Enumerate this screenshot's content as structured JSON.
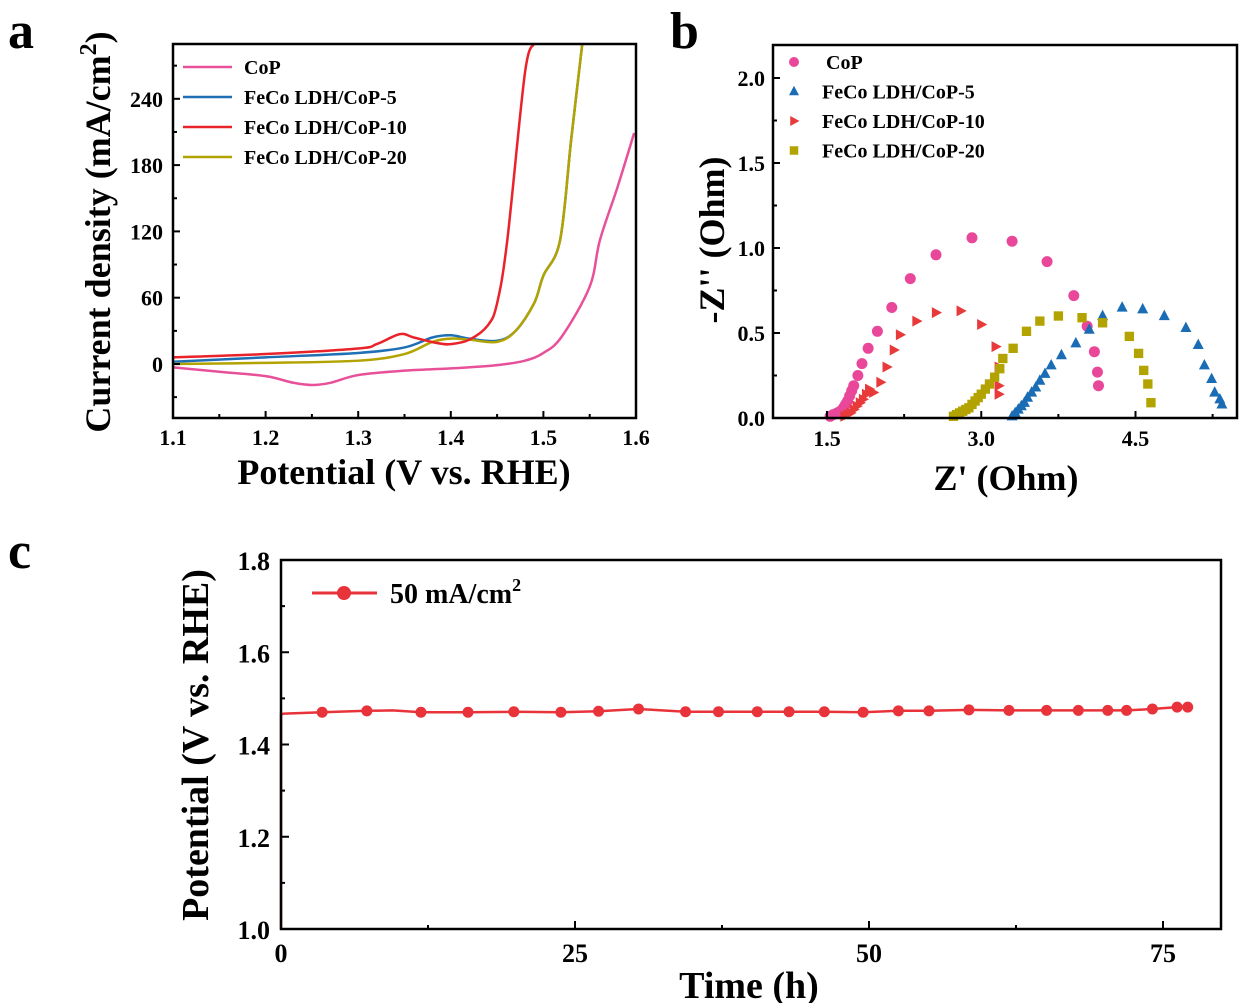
{
  "figure": {
    "panel_letters": [
      "a",
      "b",
      "c"
    ]
  },
  "chart_data": [
    {
      "panel": "a",
      "type": "line",
      "title": "",
      "xlabel": "Potential (V vs. RHE)",
      "ylabel": "Current density (mA/cm²)",
      "ylabel_parts": {
        "main": "Current density (mA/cm",
        "sup": "2",
        "end": ")"
      },
      "xlim": [
        1.1,
        1.6
      ],
      "ylim": [
        -49,
        290
      ],
      "xticks": [
        1.1,
        1.2,
        1.3,
        1.4,
        1.5,
        1.6
      ],
      "xtick_labels": [
        "1.1",
        "1.2",
        "1.3",
        "1.4",
        "1.5",
        "1.6"
      ],
      "yticks": [
        0,
        60,
        120,
        180,
        240
      ],
      "ytick_labels": [
        "0",
        "60",
        "120",
        "180",
        "240"
      ],
      "grid": false,
      "legend_position": "top-left",
      "series": [
        {
          "name": "CoP",
          "color": "#e8509a",
          "x": [
            1.1,
            1.15,
            1.2,
            1.23,
            1.25,
            1.27,
            1.3,
            1.35,
            1.4,
            1.45,
            1.48,
            1.5,
            1.52,
            1.55,
            1.561,
            1.58,
            1.598
          ],
          "y": [
            -3,
            -7,
            -11,
            -17,
            -19,
            -17,
            -10,
            -6,
            -4,
            -1,
            3,
            10,
            25,
            70,
            112,
            160,
            209
          ]
        },
        {
          "name": "FeCo LDH/CoP-5",
          "color": "#1f6fb5",
          "x": [
            1.1,
            1.2,
            1.3,
            1.35,
            1.38,
            1.4,
            1.42,
            1.45,
            1.47,
            1.49,
            1.5,
            1.518,
            1.53,
            1.542
          ],
          "y": [
            2,
            6,
            10,
            15,
            24,
            26,
            23,
            21,
            30,
            55,
            80,
            112,
            203,
            290
          ]
        },
        {
          "name": "FeCo LDH/CoP-10",
          "color": "#e8232a",
          "x": [
            1.1,
            1.2,
            1.3,
            1.32,
            1.345,
            1.36,
            1.385,
            1.4,
            1.42,
            1.44,
            1.45,
            1.461,
            1.48,
            1.49
          ],
          "y": [
            6,
            9,
            14,
            18,
            27,
            24,
            19,
            18,
            22,
            35,
            55,
            112,
            263,
            290
          ]
        },
        {
          "name": "FeCo LDH/CoP-20",
          "color": "#b3a300",
          "x": [
            1.1,
            1.2,
            1.3,
            1.35,
            1.38,
            1.4,
            1.42,
            1.45,
            1.47,
            1.49,
            1.5,
            1.518,
            1.53,
            1.542
          ],
          "y": [
            0,
            1,
            3,
            9,
            20,
            23,
            22,
            20,
            30,
            55,
            80,
            112,
            203,
            290
          ]
        }
      ]
    },
    {
      "panel": "b",
      "type": "scatter",
      "title": "",
      "xlabel": "Z' (Ohm)",
      "ylabel": "-Z'' (Ohm)",
      "xlim": [
        0.97,
        5.51
      ],
      "ylim": [
        0,
        2.19
      ],
      "xticks": [
        1.5,
        3.0,
        4.5
      ],
      "xtick_labels": [
        "1.5",
        "3.0",
        "4.5"
      ],
      "xminor": [
        2.25,
        3.75,
        5.25
      ],
      "yticks": [
        0.0,
        0.5,
        1.0,
        1.5,
        2.0
      ],
      "ytick_labels": [
        "0.0",
        "0.5",
        "1.0",
        "1.5",
        "2.0"
      ],
      "yminor": [
        0.25,
        0.75,
        1.25,
        1.75
      ],
      "grid": false,
      "legend_position": "top-left",
      "series": [
        {
          "name": "CoP",
          "color": "#e8479a",
          "marker": "circle",
          "x": [
            1.53,
            1.56,
            1.6,
            1.63,
            1.66,
            1.68,
            1.7,
            1.72,
            1.74,
            1.76,
            1.8,
            1.84,
            1.9,
            1.99,
            2.13,
            2.31,
            2.56,
            2.91,
            3.3,
            3.64,
            3.9,
            4.03,
            4.1,
            4.13,
            4.14
          ],
          "y": [
            0.01,
            0.02,
            0.03,
            0.04,
            0.06,
            0.08,
            0.1,
            0.13,
            0.16,
            0.19,
            0.25,
            0.32,
            0.41,
            0.51,
            0.65,
            0.82,
            0.96,
            1.06,
            1.04,
            0.92,
            0.72,
            0.54,
            0.39,
            0.27,
            0.19
          ]
        },
        {
          "name": "FeCo LDH/CoP-5",
          "color": "#1a6db5",
          "marker": "triangle-up",
          "x": [
            3.3,
            3.33,
            3.36,
            3.39,
            3.42,
            3.45,
            3.49,
            3.53,
            3.57,
            3.62,
            3.68,
            3.78,
            3.92,
            4.05,
            4.18,
            4.37,
            4.57,
            4.78,
            4.99,
            5.11,
            5.17,
            5.24,
            5.27,
            5.32,
            5.34
          ],
          "y": [
            0.01,
            0.03,
            0.05,
            0.07,
            0.09,
            0.12,
            0.15,
            0.18,
            0.22,
            0.26,
            0.31,
            0.37,
            0.44,
            0.52,
            0.6,
            0.65,
            0.64,
            0.6,
            0.53,
            0.43,
            0.31,
            0.23,
            0.15,
            0.11,
            0.08
          ]
        },
        {
          "name": "FeCo LDH/CoP-10",
          "color": "#e83a3a",
          "marker": "triangle-right",
          "x": [
            1.67,
            1.7,
            1.73,
            1.76,
            1.79,
            1.82,
            1.85,
            1.88,
            1.91,
            1.95,
            2.02,
            2.08,
            2.15,
            2.21,
            2.37,
            2.56,
            2.8,
            3.0,
            3.14,
            3.17,
            3.17,
            3.17
          ],
          "y": [
            0.01,
            0.02,
            0.03,
            0.05,
            0.07,
            0.09,
            0.11,
            0.14,
            0.17,
            0.15,
            0.21,
            0.3,
            0.4,
            0.49,
            0.57,
            0.62,
            0.63,
            0.55,
            0.42,
            0.3,
            0.19,
            0.14
          ]
        },
        {
          "name": "FeCo LDH/CoP-20",
          "color": "#b3a300",
          "marker": "square",
          "x": [
            2.73,
            2.76,
            2.79,
            2.82,
            2.85,
            2.88,
            2.91,
            2.94,
            2.97,
            3.0,
            3.04,
            3.08,
            3.13,
            3.18,
            3.21,
            3.31,
            3.44,
            3.57,
            3.75,
            3.98,
            4.18,
            4.44,
            4.53,
            4.58,
            4.62,
            4.65
          ],
          "y": [
            0.01,
            0.02,
            0.03,
            0.04,
            0.05,
            0.06,
            0.08,
            0.1,
            0.12,
            0.14,
            0.17,
            0.2,
            0.24,
            0.29,
            0.35,
            0.41,
            0.51,
            0.57,
            0.6,
            0.59,
            0.56,
            0.48,
            0.38,
            0.28,
            0.2,
            0.09
          ]
        }
      ]
    },
    {
      "panel": "c",
      "type": "line",
      "title": "",
      "xlabel": "Time (h)",
      "ylabel": "Potential (V vs. RHE)",
      "xlim": [
        0,
        80
      ],
      "ylim": [
        1.0,
        1.8
      ],
      "xticks": [
        0,
        25,
        50,
        75
      ],
      "xtick_labels": [
        "0",
        "25",
        "50",
        "75"
      ],
      "xminor": [
        12.5,
        37.5,
        62.5
      ],
      "yticks": [
        1.0,
        1.2,
        1.4,
        1.6,
        1.8
      ],
      "ytick_labels": [
        "1.0",
        "1.2",
        "1.4",
        "1.6",
        "1.8"
      ],
      "yminor": [
        1.1,
        1.3,
        1.5,
        1.7
      ],
      "grid": false,
      "legend_position": "top-left",
      "series": [
        {
          "name": "50 mA/cm²",
          "legend_parts": {
            "main": "50 mA/cm",
            "sup": "2"
          },
          "color": "#e8333a",
          "marker": "circle",
          "line_x": [
            0,
            0,
            0.3,
            3.5,
            7.3,
            9.5,
            11.9,
            15.9,
            19.8,
            23.8,
            27.0,
            30.4,
            34.4,
            37.2,
            40.5,
            43.2,
            46.2,
            49.5,
            52.5,
            55.1,
            58.5,
            61.9,
            65.1,
            67.8,
            70.3,
            71.9,
            74.1,
            76.2,
            77.1
          ],
          "line_y": [
            1.0,
            1.466,
            1.467,
            1.47,
            1.473,
            1.474,
            1.47,
            1.47,
            1.471,
            1.47,
            1.472,
            1.477,
            1.471,
            1.471,
            1.471,
            1.471,
            1.471,
            1.47,
            1.473,
            1.473,
            1.475,
            1.474,
            1.474,
            1.474,
            1.474,
            1.474,
            1.477,
            1.481,
            1.481
          ],
          "x": [
            3.5,
            7.3,
            11.9,
            15.9,
            19.8,
            23.8,
            27.0,
            30.4,
            34.4,
            37.2,
            40.5,
            43.2,
            46.2,
            49.5,
            52.5,
            55.1,
            58.5,
            61.9,
            65.1,
            67.8,
            70.3,
            71.9,
            74.1,
            76.2,
            77.1
          ],
          "y": [
            1.47,
            1.473,
            1.47,
            1.47,
            1.471,
            1.47,
            1.472,
            1.477,
            1.471,
            1.471,
            1.471,
            1.471,
            1.471,
            1.47,
            1.473,
            1.473,
            1.475,
            1.474,
            1.474,
            1.474,
            1.474,
            1.474,
            1.477,
            1.481,
            1.481
          ]
        }
      ]
    }
  ]
}
